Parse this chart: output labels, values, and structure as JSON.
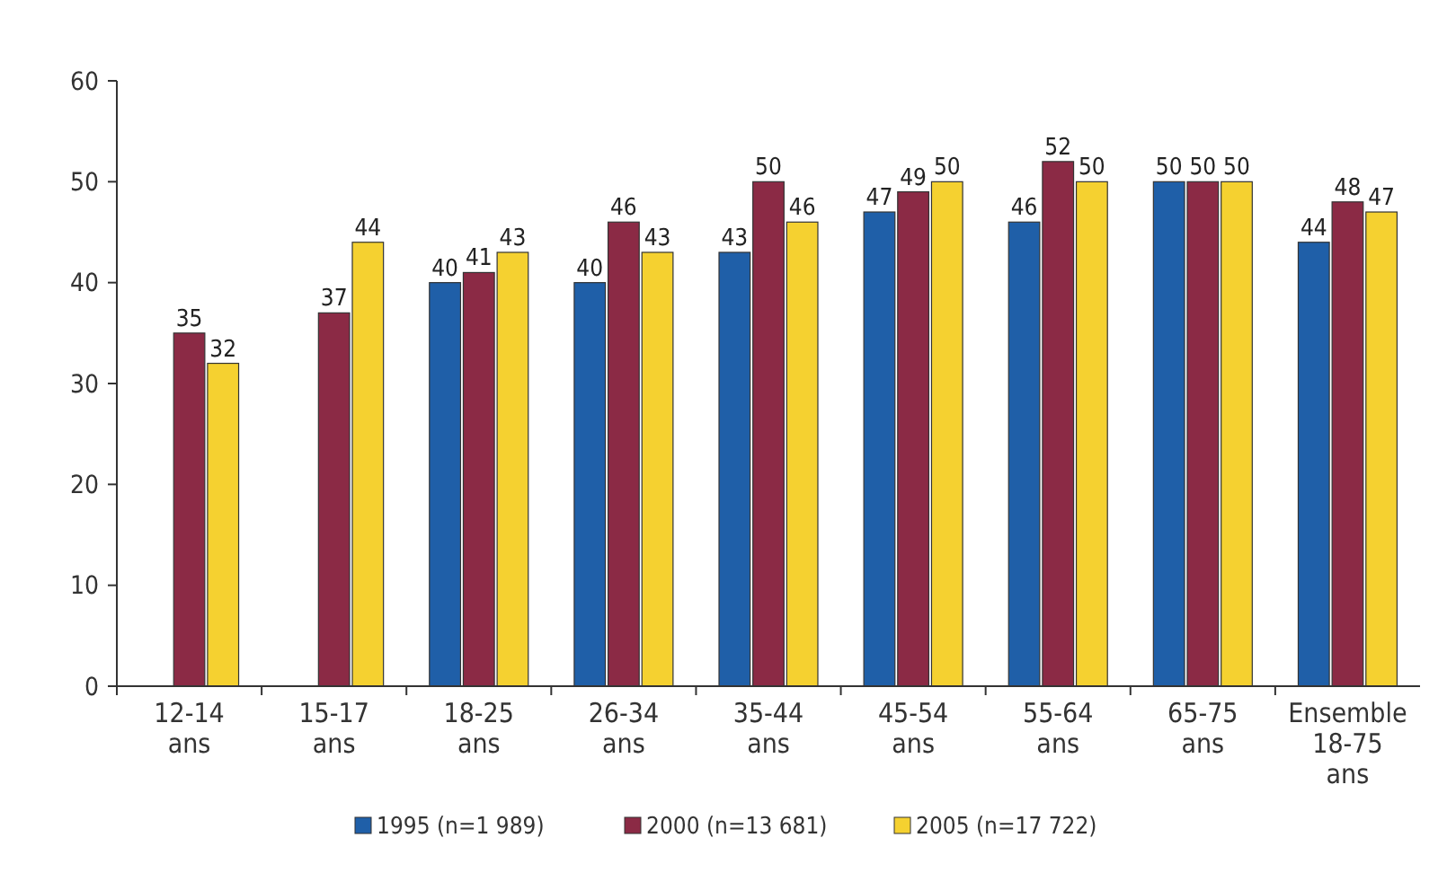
{
  "chart_data": {
    "type": "bar",
    "categories": [
      "12-14 ans",
      "15-17 ans",
      "18-25 ans",
      "26-34 ans",
      "35-44 ans",
      "45-54 ans",
      "55-64 ans",
      "65-75 ans",
      "Ensemble 18-75 ans"
    ],
    "series": [
      {
        "name": "1995 (n=1 989)",
        "color": "#1f5fa8",
        "values": [
          null,
          null,
          40,
          40,
          43,
          47,
          46,
          50,
          44
        ]
      },
      {
        "name": "2000 (n=13 681)",
        "color": "#8b2a45",
        "values": [
          35,
          37,
          41,
          46,
          50,
          49,
          52,
          50,
          48
        ]
      },
      {
        "name": "2005 (n=17 722)",
        "color": "#f5d130",
        "values": [
          32,
          44,
          43,
          43,
          46,
          50,
          50,
          50,
          47
        ]
      }
    ],
    "ylim": [
      0,
      60
    ],
    "yticks": [
      0,
      10,
      20,
      30,
      40,
      50,
      60
    ],
    "grid": false,
    "legend": "bottom",
    "data_labels": true
  }
}
